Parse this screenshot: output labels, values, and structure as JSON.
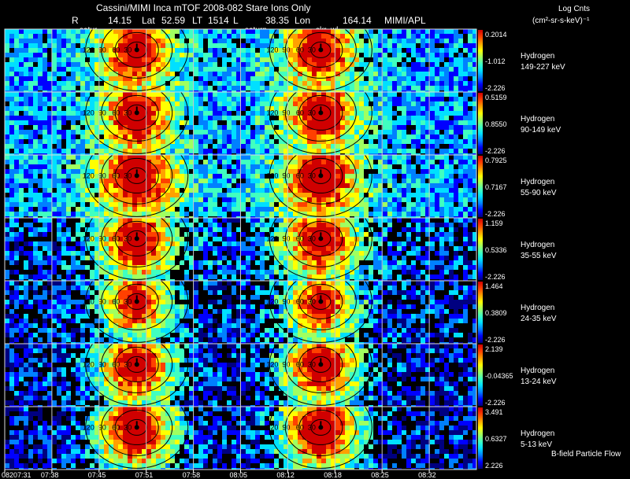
{
  "chart_data": {
    "type": "heatmap",
    "title": "Cassini/MIMI Inca mTOF  2008-082   Stare    Ions Only",
    "ephemeris": {
      "r_label": "R",
      "r": "14.15",
      "lat_label": "Lat",
      "lat": "52.59",
      "lt_label": "LT",
      "lt": "1514",
      "l_label": "L",
      "l": "38.35",
      "lon_label": "Lon",
      "lon": "164.14",
      "credit": "MIMI/APL"
    },
    "colorbar_title_line1": "Log Cnts",
    "colorbar_title_line2": "(cm²-sr-s-keV)⁻¹",
    "markers": [
      "satur",
      "saturn",
      "skr_wl"
    ],
    "x_tick_labels": [
      "08207:31",
      "07:38",
      "07:45",
      "07:51",
      "07:58",
      "08:05",
      "08:12",
      "08:18",
      "08:25",
      "08:32"
    ],
    "contour_labels": [
      "30",
      "60",
      "90",
      "120"
    ],
    "colors": [
      "#000080",
      "#0000ff",
      "#0080ff",
      "#00e0ff",
      "#40ffc0",
      "#a0ff60",
      "#ffff00",
      "#ffa000",
      "#ff4000",
      "#d00000"
    ],
    "columns_per_row": 10,
    "series": [
      {
        "name": "Hydrogen",
        "energy": "149-227 keV",
        "max": "0.2014",
        "mid": "-1.012",
        "min": "-2.226",
        "intensity": 0.55,
        "background": 0.28
      },
      {
        "name": "Hydrogen",
        "energy": "90-149 keV",
        "max": "0.5159",
        "mid": "0.8550",
        "min": "-2.226",
        "intensity": 0.58,
        "background": 0.28
      },
      {
        "name": "Hydrogen",
        "energy": "55-90 keV",
        "max": "0.7925",
        "mid": "0.7167",
        "min": "-2.226",
        "intensity": 0.62,
        "background": 0.3
      },
      {
        "name": "Hydrogen",
        "energy": "35-55 keV",
        "max": "1.159",
        "mid": "0.5336",
        "min": "-2.226",
        "intensity": 0.62,
        "background": 0.22
      },
      {
        "name": "Hydrogen",
        "energy": "24-35 keV",
        "max": "1.464",
        "mid": "0.3809",
        "min": "-2.226",
        "intensity": 0.58,
        "background": 0.16
      },
      {
        "name": "Hydrogen",
        "energy": "13-24 keV",
        "max": "2.139",
        "mid": "-0.04365",
        "min": "-2.226",
        "intensity": 0.7,
        "background": 0.15
      },
      {
        "name": "Hydrogen",
        "energy": "5-13 keV",
        "max": "3.491",
        "mid": "0.6327",
        "min": "2.226",
        "intensity": 0.78,
        "background": 0.14
      }
    ],
    "footer_label": "B-field Particle Flow"
  }
}
